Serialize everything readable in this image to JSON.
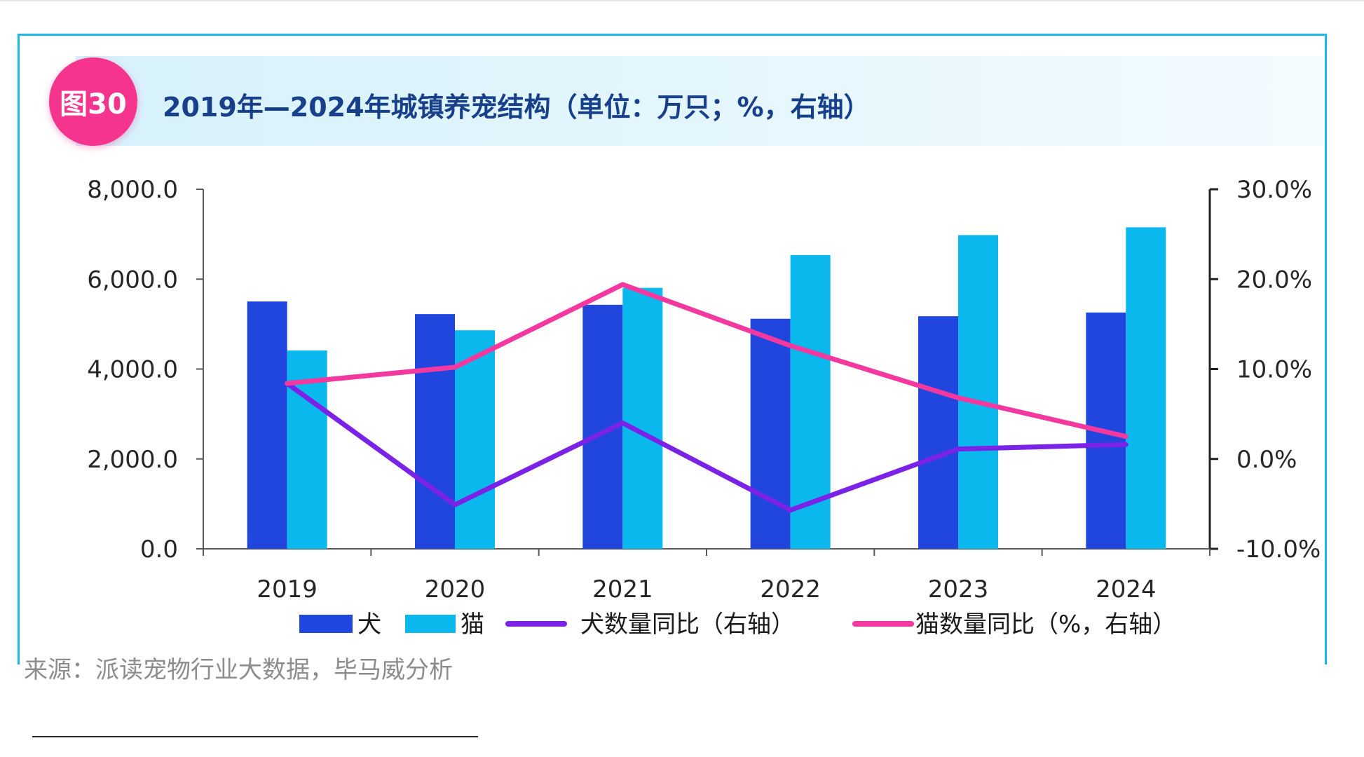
{
  "header": {
    "badge": "图30",
    "title": "2019年—2024年城镇养宠结构（单位：万只；%，右轴）"
  },
  "source": "来源：派读宠物行业大数据，毕马威分析",
  "colors": {
    "dog_bar": "#2046de",
    "cat_bar": "#0bb8ee",
    "dog_line": "#7a22e6",
    "cat_line": "#f3399f",
    "frame": "#1ab8e6",
    "badge": "#f5348e",
    "title": "#173f8a"
  },
  "chart_data": {
    "type": "bar",
    "categories": [
      "2019",
      "2020",
      "2021",
      "2022",
      "2023",
      "2024"
    ],
    "series": [
      {
        "name": "犬",
        "type": "bar",
        "axis": "left",
        "values": [
          5503,
          5222,
          5429,
          5119,
          5175,
          5258
        ]
      },
      {
        "name": "猫",
        "type": "bar",
        "axis": "left",
        "values": [
          4412,
          4862,
          5806,
          6536,
          6980,
          7153
        ]
      },
      {
        "name": "犬数量同比（右轴）",
        "type": "line",
        "axis": "right",
        "values": [
          8.4,
          -5.1,
          4.0,
          -5.7,
          1.1,
          1.6
        ]
      },
      {
        "name": "猫数量同比（%，右轴）",
        "type": "line",
        "axis": "right",
        "values": [
          8.4,
          10.2,
          19.4,
          12.6,
          6.8,
          2.5
        ]
      }
    ],
    "y_left": {
      "min": 0,
      "max": 8000,
      "ticks": [
        "8,000.0",
        "6,000.0",
        "4,000.0",
        "2,000.0",
        "0.0"
      ]
    },
    "y_right": {
      "min": -10,
      "max": 30,
      "ticks": [
        "30.0%",
        "20.0%",
        "10.0%",
        "0.0%",
        "-10.0%"
      ]
    },
    "legend_position": "bottom",
    "grid": false
  }
}
